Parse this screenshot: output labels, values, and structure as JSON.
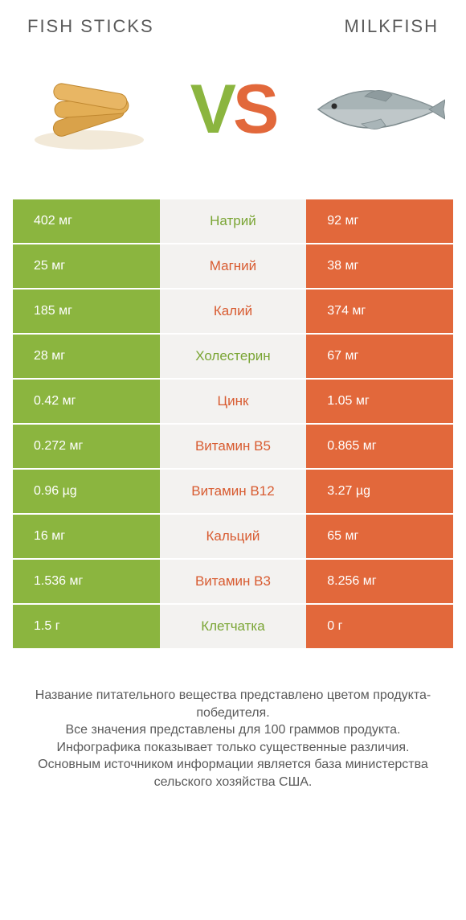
{
  "header": {
    "left_title": "FISH STICKS",
    "right_title": "MILKFISH"
  },
  "vs": {
    "v": "V",
    "s": "S"
  },
  "colors": {
    "green": "#8bb53f",
    "orange": "#e2683b",
    "green_bg": "#8bb53f",
    "orange_bg": "#e2683b",
    "mid_bg": "#f3f2f0",
    "mid_text_green": "#7aa534",
    "mid_text_orange": "#d85b30"
  },
  "table": {
    "rows": [
      {
        "label": "Натрий",
        "left": "402 мг",
        "right": "92 мг",
        "winner": "left"
      },
      {
        "label": "Магний",
        "left": "25 мг",
        "right": "38 мг",
        "winner": "right"
      },
      {
        "label": "Калий",
        "left": "185 мг",
        "right": "374 мг",
        "winner": "right"
      },
      {
        "label": "Холестерин",
        "left": "28 мг",
        "right": "67 мг",
        "winner": "left"
      },
      {
        "label": "Цинк",
        "left": "0.42 мг",
        "right": "1.05 мг",
        "winner": "right"
      },
      {
        "label": "Витамин B5",
        "left": "0.272 мг",
        "right": "0.865 мг",
        "winner": "right"
      },
      {
        "label": "Витамин B12",
        "left": "0.96 µg",
        "right": "3.27 µg",
        "winner": "right"
      },
      {
        "label": "Кальций",
        "left": "16 мг",
        "right": "65 мг",
        "winner": "right"
      },
      {
        "label": "Витамин B3",
        "left": "1.536 мг",
        "right": "8.256 мг",
        "winner": "right"
      },
      {
        "label": "Клетчатка",
        "left": "1.5 г",
        "right": "0 г",
        "winner": "left"
      }
    ]
  },
  "footer": {
    "line1": "Название питательного вещества представлено цветом продукта-победителя.",
    "line2": "Все значения представлены для 100 граммов продукта.",
    "line3": "Инфографика показывает только существенные различия.",
    "line4": "Основным источником информации является база министерства сельского хозяйства США."
  },
  "images": {
    "left_alt": "fish-sticks",
    "right_alt": "milkfish"
  }
}
